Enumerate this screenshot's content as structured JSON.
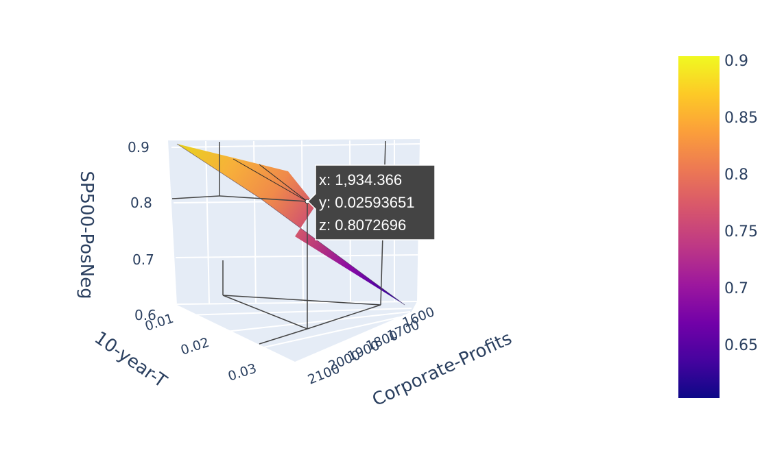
{
  "chart_data": {
    "type": "surface",
    "x_title": "Corporate-Profits",
    "y_title": "10-year-T",
    "z_title": "SP500-PosNeg",
    "x_ticks": [
      "1600",
      "1700",
      "1800",
      "1900",
      "2000",
      "2100"
    ],
    "y_ticks": [
      "0.01",
      "0.02",
      "0.03"
    ],
    "z_ticks": [
      "0.6",
      "0.7",
      "0.8",
      "0.9"
    ],
    "x_range": [
      1550,
      2150
    ],
    "y_range": [
      0.005,
      0.035
    ],
    "z_range": [
      0.6,
      0.92
    ],
    "surface_points": [
      {
        "x": 2100,
        "y": 0.01,
        "z": 0.905
      },
      {
        "x": 1934.366,
        "y": 0.02593651,
        "z": 0.8072696
      },
      {
        "x": 1600,
        "y": 0.035,
        "z": 0.605
      }
    ],
    "colorscale": "plasma",
    "colorbar": {
      "ticks": [
        "0.9",
        "0.85",
        "0.8",
        "0.75",
        "0.7",
        "0.65"
      ],
      "range": [
        0.605,
        0.905
      ]
    },
    "hover": {
      "x_text": "x: 1,934.366",
      "y_text": "y: 0.02593651",
      "z_text": "z: 0.8072696"
    }
  }
}
